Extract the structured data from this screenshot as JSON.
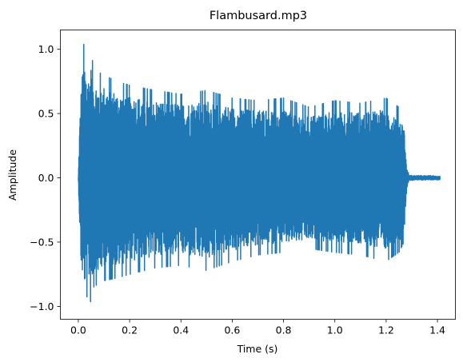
{
  "chart_data": {
    "type": "line",
    "title": "Flambusard.mp3",
    "xlabel": "Time (s)",
    "ylabel": "Amplitude",
    "xlim": [
      -0.07,
      1.47
    ],
    "ylim": [
      -1.1,
      1.15
    ],
    "xticks": [
      0.0,
      0.2,
      0.4,
      0.6,
      0.8,
      1.0,
      1.2,
      1.4
    ],
    "xtick_labels": [
      "0.0",
      "0.2",
      "0.4",
      "0.6",
      "0.8",
      "1.0",
      "1.2",
      "1.4"
    ],
    "yticks": [
      -1.0,
      -0.5,
      0.0,
      0.5,
      1.0
    ],
    "ytick_labels": [
      "−1.0",
      "−0.5",
      "0.0",
      "0.5",
      "1.0"
    ],
    "grid": false,
    "series": [
      {
        "color": "#1f77b4",
        "duration_s": 1.41,
        "envelope": {
          "t": [
            0.0,
            0.005,
            0.01,
            0.02,
            0.03,
            0.04,
            0.05,
            0.06,
            0.08,
            0.1,
            0.15,
            0.2,
            0.3,
            0.4,
            0.5,
            0.6,
            0.7,
            0.8,
            0.9,
            1.0,
            1.1,
            1.2,
            1.25,
            1.27,
            1.28,
            1.29,
            1.41
          ],
          "max": [
            0.0,
            0.45,
            0.75,
            1.05,
            0.95,
            0.9,
            0.98,
            0.85,
            0.82,
            0.8,
            0.75,
            0.72,
            0.68,
            0.65,
            0.68,
            0.62,
            0.6,
            0.62,
            0.55,
            0.6,
            0.58,
            0.62,
            0.55,
            0.45,
            0.08,
            0.02,
            0.015
          ],
          "min": [
            0.0,
            -0.4,
            -0.75,
            -0.92,
            -0.95,
            -0.88,
            -0.99,
            -0.85,
            -0.82,
            -0.8,
            -0.78,
            -0.75,
            -0.7,
            -0.68,
            -0.72,
            -0.65,
            -0.6,
            -0.58,
            -0.55,
            -0.58,
            -0.6,
            -0.65,
            -0.58,
            -0.5,
            -0.08,
            -0.02,
            -0.015
          ]
        }
      }
    ]
  }
}
